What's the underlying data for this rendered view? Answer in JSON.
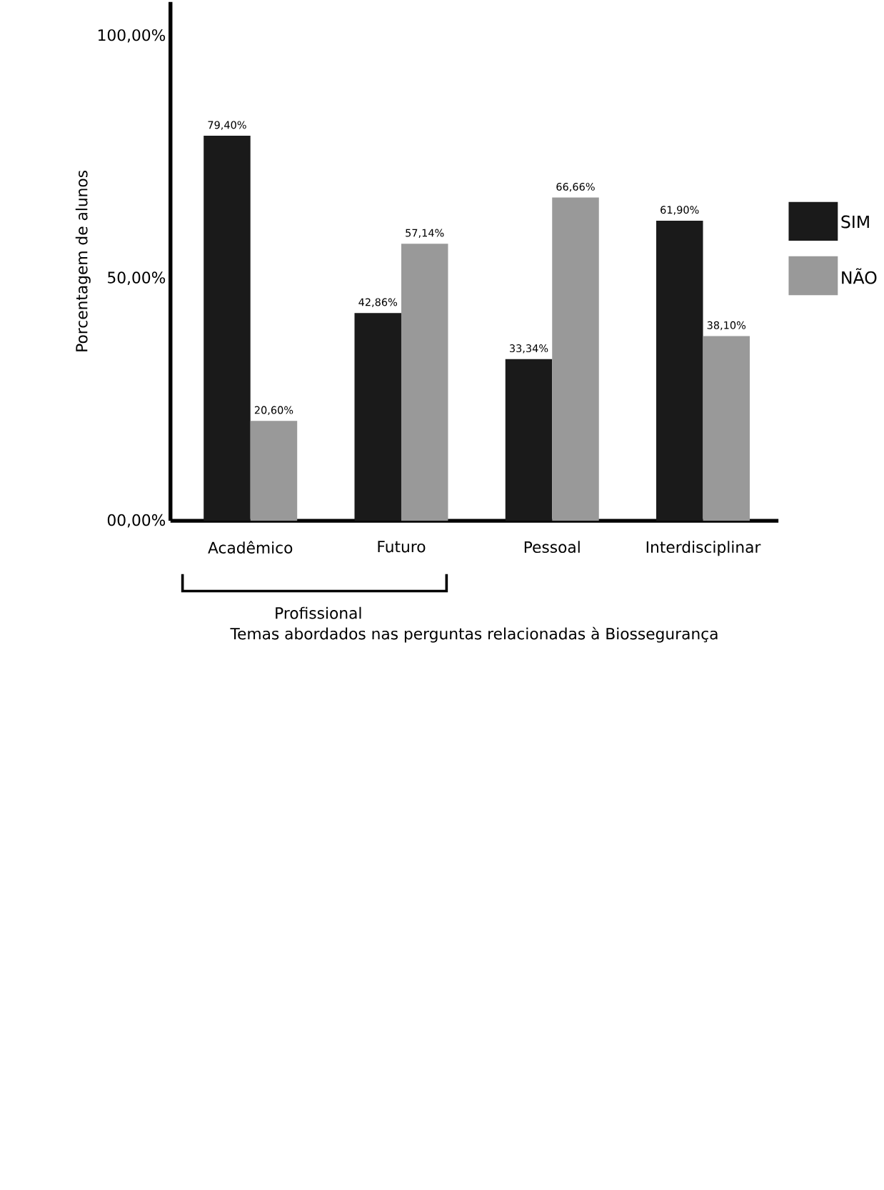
{
  "chart_data": {
    "type": "bar",
    "xlabel": "Temas abordados nas perguntas relacionadas à Biossegurança",
    "ylabel": "Porcentagem de alunos",
    "categories": [
      "Acadêmico",
      "Futuro",
      "Pessoal",
      "Interdisciplinar"
    ],
    "series": [
      {
        "name": "SIM",
        "color": "#1a1a1a",
        "values": [
          79.4,
          42.86,
          33.34,
          61.9
        ],
        "value_labels": [
          "79,40%",
          "42,86%",
          "33,34%",
          "61,90%"
        ]
      },
      {
        "name": "NÃO",
        "color": "#999999",
        "values": [
          20.6,
          57.14,
          66.66,
          38.1
        ],
        "value_labels": [
          "20,60%",
          "57,14%",
          "66,66%",
          "38,10%"
        ]
      }
    ],
    "ylim": [
      0,
      107
    ],
    "yticks": [
      {
        "value": 0,
        "label": "00,00%"
      },
      {
        "value": 50,
        "label": "50,00%"
      },
      {
        "value": 100,
        "label": "100,00%"
      }
    ],
    "annotations": [
      "Profissional"
    ],
    "legend": "right",
    "grid": false
  }
}
